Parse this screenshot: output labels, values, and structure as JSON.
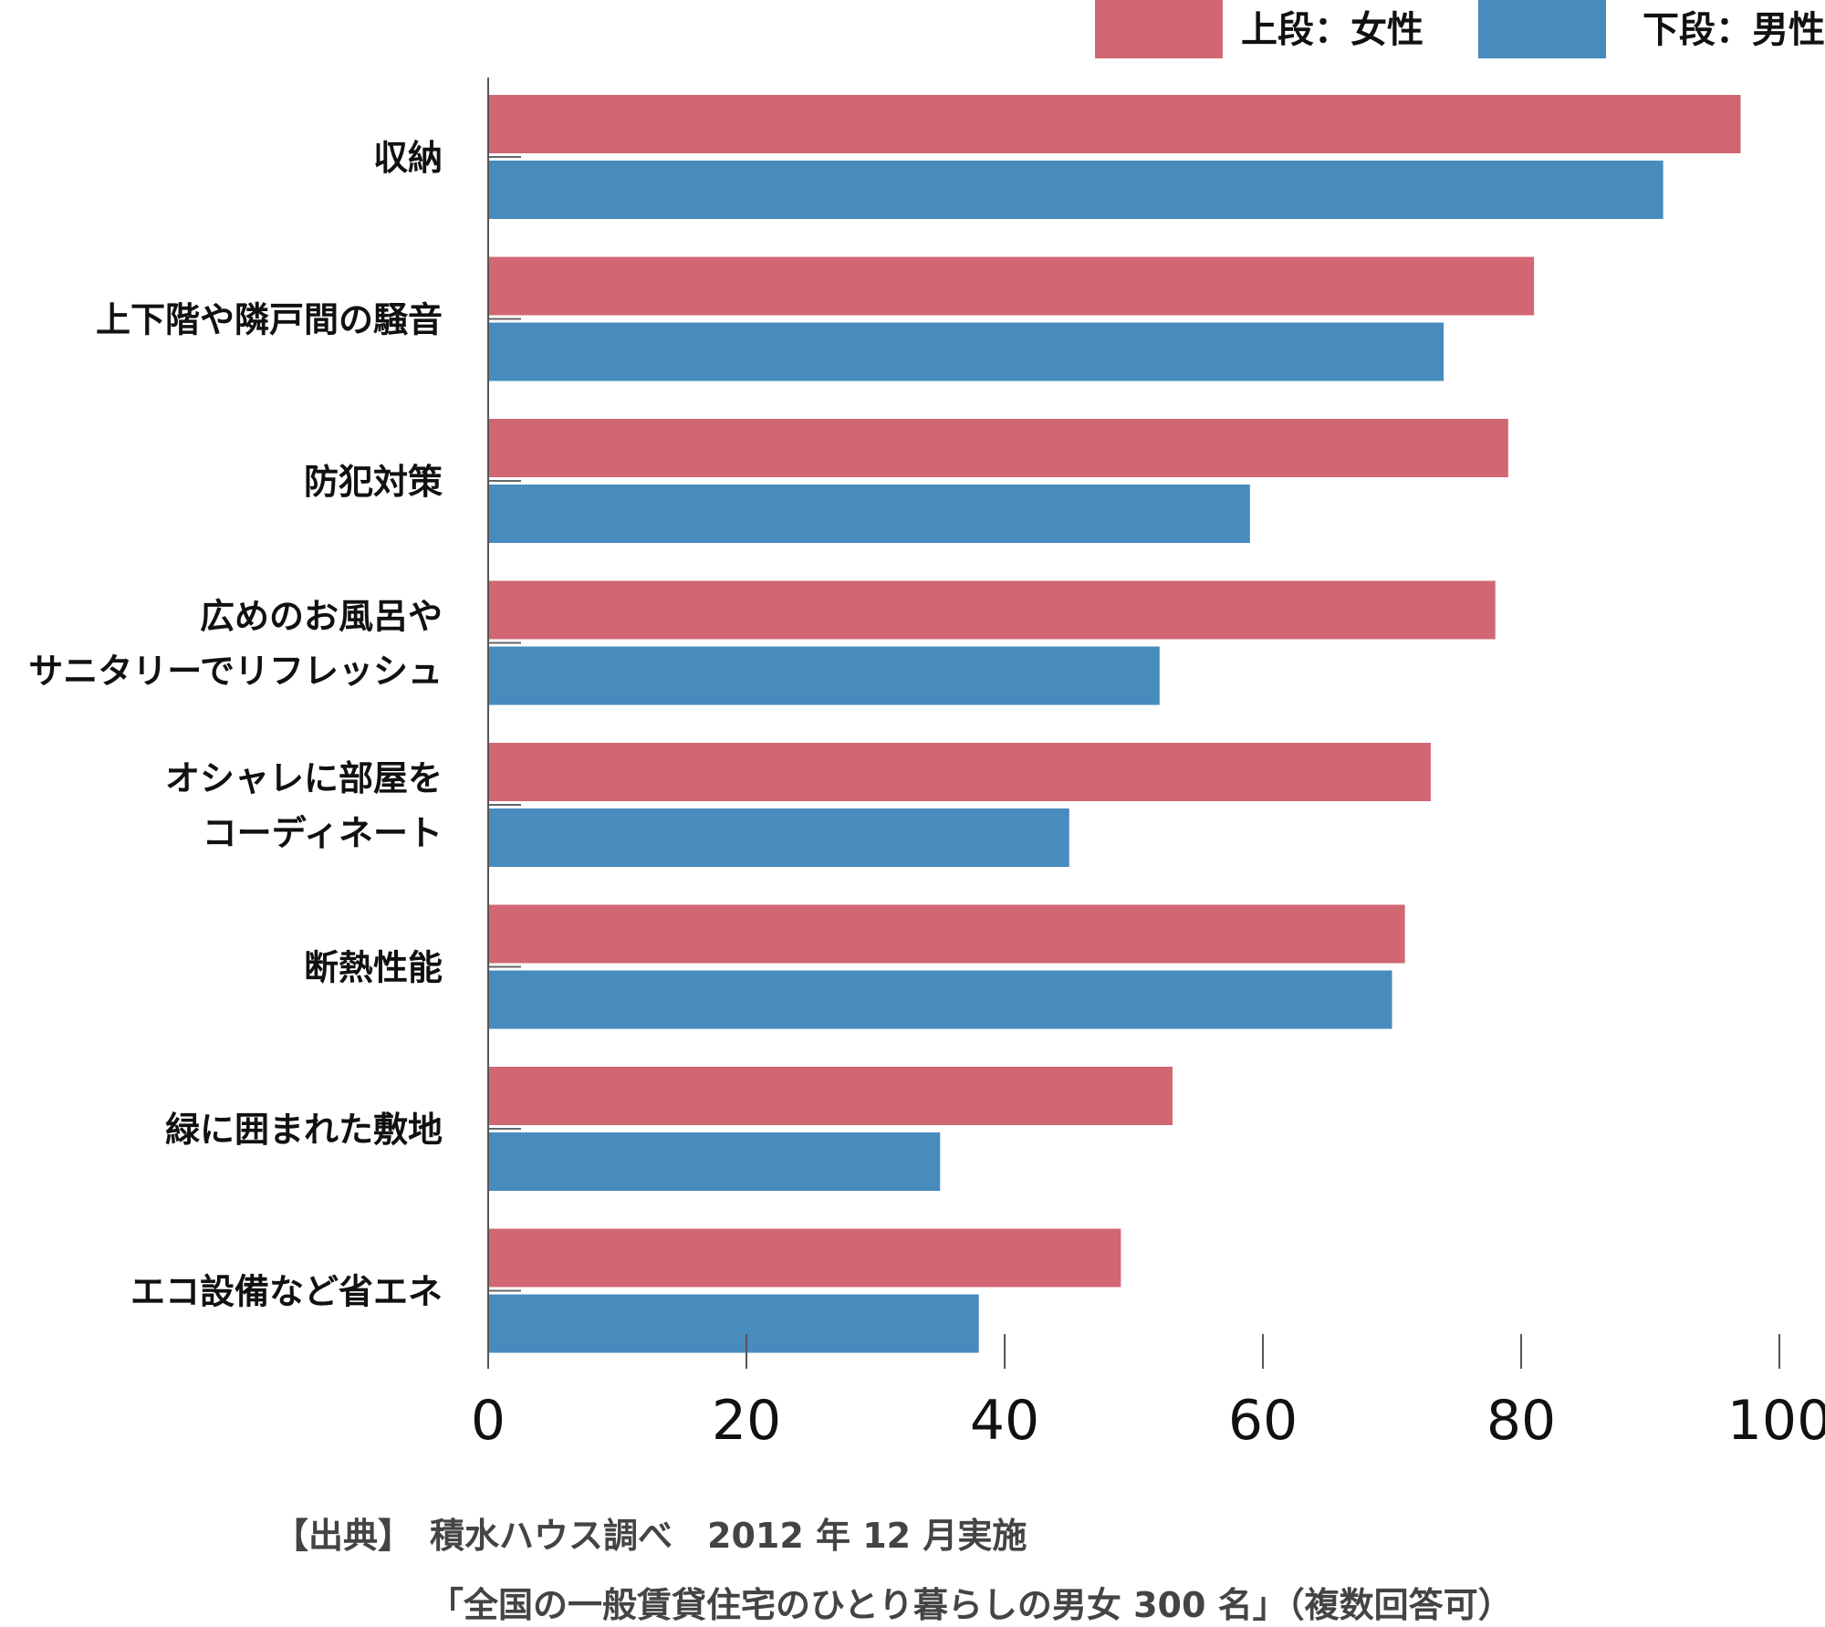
{
  "chart_data": {
    "type": "bar",
    "orientation": "horizontal",
    "categories": [
      [
        "収納"
      ],
      [
        "上下階や隣戸間の騒音"
      ],
      [
        "防犯対策"
      ],
      [
        "広めのお風呂や",
        "サニタリーでリフレッシュ"
      ],
      [
        "オシャレに部屋を",
        "コーディネート"
      ],
      [
        "断熱性能"
      ],
      [
        "緑に囲まれた敷地"
      ],
      [
        "エコ設備など省エネ"
      ]
    ],
    "series": [
      {
        "name": "上段：女性",
        "color": "#d06773",
        "values": [
          97,
          81,
          79,
          78,
          73,
          71,
          53,
          49
        ]
      },
      {
        "name": "下段：男性",
        "color": "#488bbd",
        "values": [
          91,
          74,
          59,
          52,
          45,
          70,
          35,
          38
        ]
      }
    ],
    "xlim": [
      0,
      100
    ],
    "xticks": [
      "0",
      "20",
      "40",
      "60",
      "80",
      "100"
    ],
    "grid": false,
    "legend_position": "top-right"
  },
  "source": {
    "line1": "【出典】　積水ハウス調べ　2012 年 12 月実施",
    "line2": "「全国の一般賃貸住宅のひとり暮らしの男女 300 名」（複数回答可）"
  }
}
